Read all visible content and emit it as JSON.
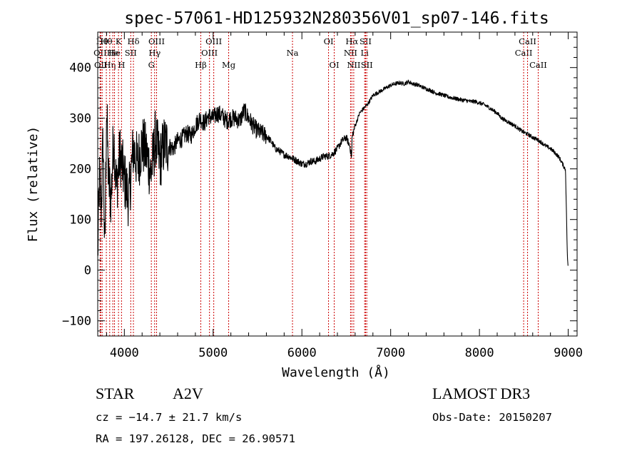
{
  "chart_data": {
    "type": "line",
    "title": "spec-57061-HD125932N280356V01_sp07-146.fits",
    "xlabel": "Wavelength (Å)",
    "ylabel": "Flux (relative)",
    "xlim": [
      3700,
      9100
    ],
    "ylim": [
      -130,
      470
    ],
    "grid": false,
    "x_ticks": [
      4000,
      5000,
      6000,
      7000,
      8000,
      9000
    ],
    "x_tick_labels": [
      "4000",
      "5000",
      "6000",
      "7000",
      "8000",
      "9000"
    ],
    "y_ticks": [
      -100,
      0,
      100,
      200,
      300,
      400
    ],
    "y_tick_labels": [
      "−100",
      "0",
      "100",
      "200",
      "300",
      "400"
    ],
    "series": [
      {
        "name": "spectrum",
        "color": "#000000",
        "x": [
          3700,
          3720,
          3740,
          3760,
          3780,
          3800,
          3820,
          3850,
          3880,
          3910,
          3950,
          4000,
          4050,
          4100,
          4150,
          4200,
          4250,
          4300,
          4350,
          4400,
          4450,
          4500,
          4550,
          4600,
          4650,
          4700,
          4750,
          4800,
          4850,
          4900,
          4950,
          5000,
          5050,
          5100,
          5150,
          5200,
          5250,
          5300,
          5350,
          5400,
          5450,
          5500,
          5550,
          5600,
          5650,
          5700,
          5750,
          5800,
          5850,
          5900,
          5950,
          6000,
          6050,
          6100,
          6150,
          6200,
          6250,
          6300,
          6350,
          6400,
          6450,
          6500,
          6540,
          6560,
          6565,
          6575,
          6600,
          6650,
          6700,
          6750,
          6800,
          6850,
          6900,
          6950,
          7000,
          7050,
          7100,
          7150,
          7200,
          7250,
          7300,
          7350,
          7400,
          7450,
          7500,
          7550,
          7600,
          7650,
          7700,
          7750,
          7800,
          7850,
          7900,
          7950,
          8000,
          8050,
          8100,
          8150,
          8200,
          8250,
          8300,
          8350,
          8400,
          8450,
          8500,
          8550,
          8600,
          8650,
          8700,
          8750,
          8800,
          8850,
          8900,
          8950,
          8970,
          8990,
          9000
        ],
        "y": [
          30,
          180,
          120,
          260,
          20,
          330,
          180,
          140,
          270,
          160,
          230,
          180,
          140,
          240,
          210,
          250,
          230,
          190,
          260,
          215,
          250,
          245,
          240,
          255,
          260,
          270,
          265,
          285,
          300,
          290,
          305,
          300,
          310,
          305,
          295,
          300,
          300,
          295,
          315,
          300,
          285,
          275,
          270,
          265,
          255,
          240,
          235,
          228,
          225,
          220,
          215,
          210,
          210,
          215,
          215,
          220,
          225,
          225,
          230,
          240,
          255,
          262,
          245,
          222,
          260,
          270,
          285,
          310,
          320,
          330,
          345,
          350,
          355,
          360,
          365,
          368,
          370,
          368,
          372,
          368,
          366,
          362,
          358,
          355,
          350,
          348,
          345,
          342,
          340,
          338,
          336,
          335,
          333,
          333,
          330,
          327,
          322,
          316,
          310,
          300,
          295,
          290,
          285,
          278,
          272,
          268,
          262,
          258,
          252,
          245,
          240,
          232,
          222,
          205,
          198,
          30,
          0
        ]
      }
    ],
    "line_markers": [
      {
        "wavelength": 3727,
        "label": "OII",
        "row": 2,
        "color": "#cc0000"
      },
      {
        "wavelength": 3734,
        "label": "OII",
        "row": 3,
        "color": "#cc0000"
      },
      {
        "wavelength": 3750,
        "label": "Hθ",
        "row": 1,
        "color": "#cc0000"
      },
      {
        "wavelength": 3797,
        "label": "Hθ",
        "row": 1,
        "color": "#cc0000"
      },
      {
        "wavelength": 3835,
        "label": "Hη",
        "row": 3,
        "color": "#cc0000"
      },
      {
        "wavelength": 3870,
        "label": "He",
        "row": 2,
        "color": "#cc0000"
      },
      {
        "wavelength": 3889,
        "label": "He",
        "row": 2,
        "color": "#cc0000"
      },
      {
        "wavelength": 3934,
        "label": "K",
        "row": 1,
        "color": "#cc0000"
      },
      {
        "wavelength": 3968,
        "label": "H",
        "row": 3,
        "color": "#cc0000"
      },
      {
        "wavelength": 4072,
        "label": "SII",
        "row": 2,
        "color": "#cc0000"
      },
      {
        "wavelength": 4102,
        "label": "Hδ",
        "row": 1,
        "color": "#cc0000"
      },
      {
        "wavelength": 4304,
        "label": "G",
        "row": 3,
        "color": "#cc0000"
      },
      {
        "wavelength": 4341,
        "label": "Hγ",
        "row": 2,
        "color": "#cc0000"
      },
      {
        "wavelength": 4363,
        "label": "OIII",
        "row": 1,
        "color": "#cc0000"
      },
      {
        "wavelength": 4861,
        "label": "Hβ",
        "row": 3,
        "color": "#cc0000"
      },
      {
        "wavelength": 4959,
        "label": "OIII",
        "row": 2,
        "color": "#cc0000"
      },
      {
        "wavelength": 5007,
        "label": "OIII",
        "row": 1,
        "color": "#cc0000"
      },
      {
        "wavelength": 5175,
        "label": "Mg",
        "row": 3,
        "color": "#cc0000"
      },
      {
        "wavelength": 5894,
        "label": "Na",
        "row": 2,
        "color": "#cc0000"
      },
      {
        "wavelength": 6300,
        "label": "OI",
        "row": 1,
        "color": "#cc0000"
      },
      {
        "wavelength": 6364,
        "label": "OI",
        "row": 3,
        "color": "#cc0000"
      },
      {
        "wavelength": 6548,
        "label": "NII",
        "row": 2,
        "color": "#cc0000"
      },
      {
        "wavelength": 6563,
        "label": "Hα",
        "row": 1,
        "color": "#cc0000"
      },
      {
        "wavelength": 6584,
        "label": "NII",
        "row": 3,
        "color": "#cc0000"
      },
      {
        "wavelength": 6707,
        "label": "Li",
        "row": 2,
        "color": "#cc0000"
      },
      {
        "wavelength": 6717,
        "label": "SII",
        "row": 1,
        "color": "#cc0000"
      },
      {
        "wavelength": 6731,
        "label": "SII",
        "row": 3,
        "color": "#cc0000"
      },
      {
        "wavelength": 8498,
        "label": "CaII",
        "row": 2,
        "color": "#cc0000"
      },
      {
        "wavelength": 8542,
        "label": "CaII",
        "row": 1,
        "color": "#cc0000"
      },
      {
        "wavelength": 8662,
        "label": "CaII",
        "row": 3,
        "color": "#cc0000"
      }
    ]
  },
  "info": {
    "class_label": "STAR",
    "subclass": "A2V",
    "survey": "LAMOST DR3",
    "cz": "cz = −14.7 ± 21.7 km/s",
    "obs_date": "Obs-Date: 20150207",
    "coords": "RA = 197.26128, DEC =  26.90571"
  }
}
